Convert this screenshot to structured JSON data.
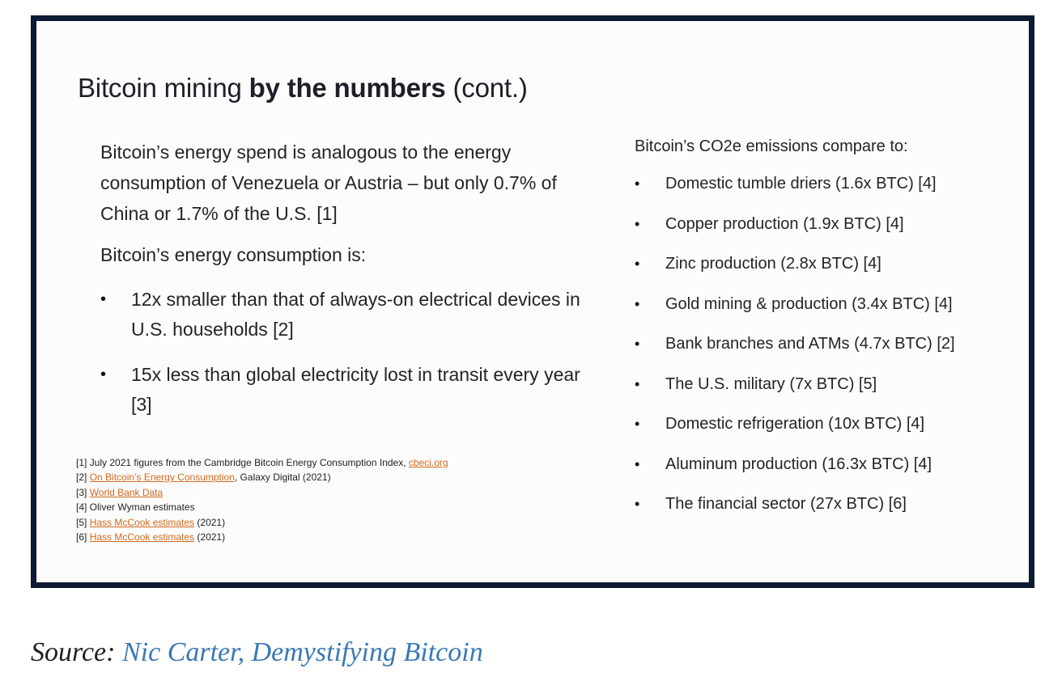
{
  "slide": {
    "title_pre": "Bitcoin mining ",
    "title_bold": "by the numbers",
    "title_post": " (cont.)",
    "left": {
      "intro": "Bitcoin’s energy spend is analogous to the energy consumption of Venezuela or Austria – but only 0.7% of China or 1.7% of the U.S. [1]",
      "lead": "Bitcoin’s energy consumption is:",
      "bullets": [
        "12x smaller than that of always-on electrical devices in U.S. households [2]",
        "15x less than global electricity lost in transit every year [3]"
      ]
    },
    "references": [
      {
        "prefix": "[1] July 2021 figures from the Cambridge Bitcoin Energy Consumption Index, ",
        "link": "cbeci.org",
        "suffix": ""
      },
      {
        "prefix": "[2] ",
        "link": "On Bitcoin’s Energy Consumption",
        "suffix": ", Galaxy Digital (2021)"
      },
      {
        "prefix": "[3] ",
        "link": "World Bank Data",
        "suffix": ""
      },
      {
        "prefix": "[4] Oliver Wyman estimates",
        "link": "",
        "suffix": ""
      },
      {
        "prefix": "[5] ",
        "link": "Hass McCook estimates",
        "suffix": " (2021)"
      },
      {
        "prefix": "[6] ",
        "link": "Hass McCook estimates",
        "suffix": " (2021)"
      }
    ],
    "right": {
      "lead": "Bitcoin’s CO2e emissions compare to:",
      "bullets": [
        "Domestic tumble driers (1.6x BTC) [4]",
        "Copper production (1.9x BTC) [4]",
        "Zinc production (2.8x BTC) [4]",
        "Gold mining & production (3.4x BTC) [4]",
        "Bank branches and ATMs (4.7x BTC) [2]",
        "The U.S. military (7x BTC) [5]",
        "Domestic refrigeration (10x BTC) [4]",
        "Aluminum production (16.3x BTC) [4]",
        "The financial sector (27x BTC) [6]"
      ]
    }
  },
  "source": {
    "label": "Source:",
    "link": "Nic Carter, Demystifying Bitcoin"
  },
  "bullet_glyph": "•"
}
